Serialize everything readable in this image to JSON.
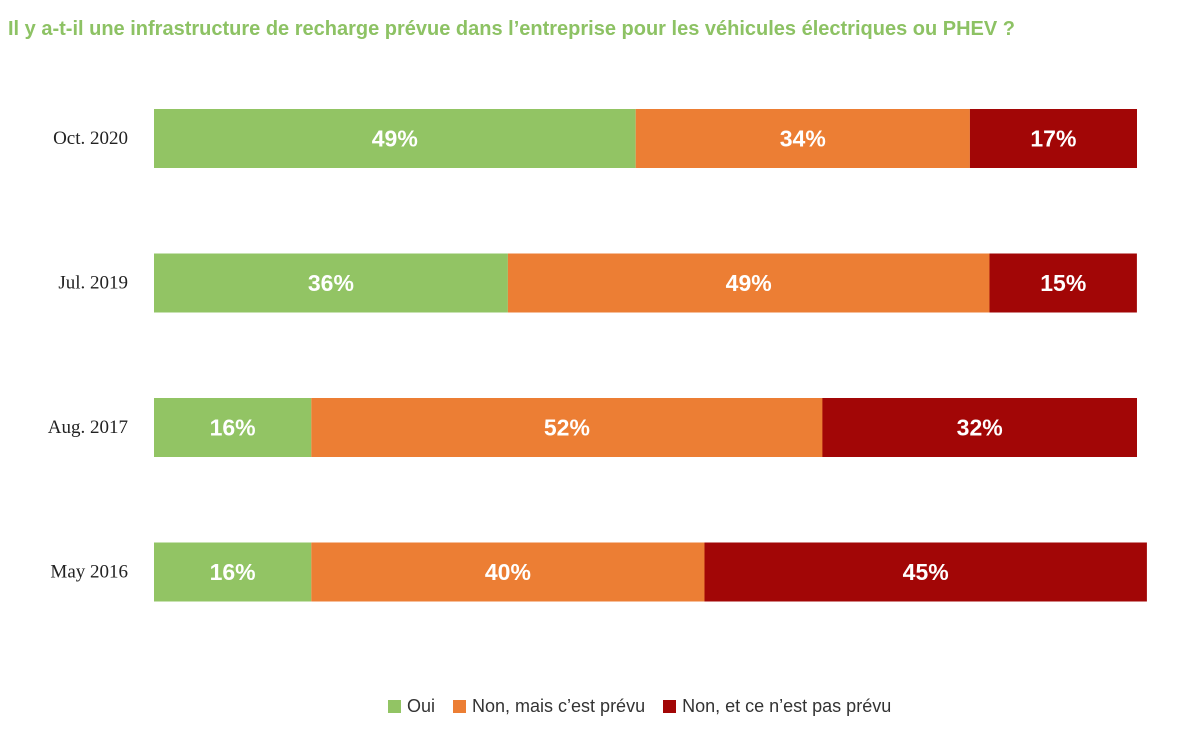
{
  "chart_data": {
    "type": "bar",
    "orientation": "horizontal",
    "stacked": true,
    "title": "Il y a-t-il une infrastructure de recharge prévue dans l’entreprise pour les véhicules électriques ou PHEV ?",
    "categories": [
      "Oct. 2020",
      "Jul. 2019",
      "Aug. 2017",
      "May 2016"
    ],
    "series": [
      {
        "name": "Oui",
        "color": "#92c464",
        "values": [
          49,
          36,
          16,
          16
        ],
        "labels": [
          "49%",
          "36%",
          "16%",
          "16%"
        ]
      },
      {
        "name": "Non, mais c’est prévu",
        "color": "#ec7e34",
        "values": [
          34,
          49,
          52,
          40
        ],
        "labels": [
          "34%",
          "49%",
          "52%",
          "40%"
        ]
      },
      {
        "name": "Non, et ce n’est pas prévu",
        "color": "#a20606",
        "values": [
          17,
          15,
          32,
          45
        ],
        "labels": [
          "17%",
          "15%",
          "32%",
          "45%"
        ]
      }
    ],
    "xlabel": "",
    "ylabel": "",
    "grid": false,
    "legend_position": "bottom"
  }
}
